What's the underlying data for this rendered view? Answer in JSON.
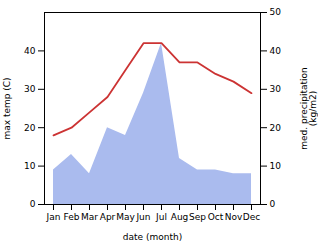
{
  "chart_data": {
    "type": "line",
    "categories": [
      "Jan",
      "Feb",
      "Mar",
      "Apr",
      "May",
      "Jun",
      "Jul",
      "Aug",
      "Sep",
      "Oct",
      "Nov",
      "Dec"
    ],
    "xlabel": "date (month)",
    "ylabel": "max temp (C)",
    "y2label": "med. precipitation\n(kg/m2)",
    "ylim": [
      0,
      50
    ],
    "yticks": [
      0,
      10,
      20,
      30,
      40
    ],
    "y2lim": [
      0,
      50
    ],
    "y2ticks": [
      0,
      10,
      20,
      30,
      40,
      50
    ],
    "grid": false,
    "series": [
      {
        "type": "area",
        "axis": "y2",
        "color": "#aabbee",
        "values": [
          9,
          13,
          8,
          20,
          18,
          29,
          42,
          12,
          9,
          9,
          8,
          8
        ]
      },
      {
        "type": "line",
        "color": "#cc3333",
        "values": [
          18,
          20,
          24,
          28,
          35,
          42,
          42,
          37,
          37,
          34,
          32,
          29
        ]
      }
    ]
  }
}
